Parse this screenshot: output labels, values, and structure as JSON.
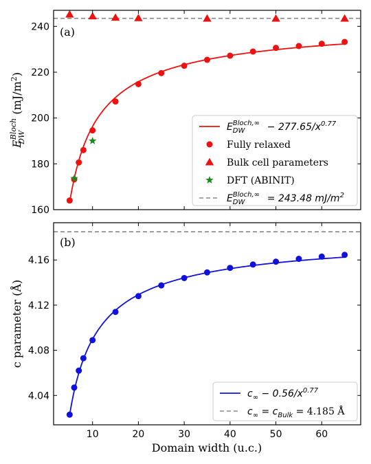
{
  "chart_data": [
    {
      "panel": "(a)",
      "type": "scatter",
      "xlim": [
        1.5,
        68.5
      ],
      "ylim": [
        160,
        247
      ],
      "xticks": [
        10,
        20,
        30,
        40,
        50,
        60
      ],
      "show_xtick_labels": false,
      "yticks": [
        160,
        180,
        200,
        220,
        240
      ],
      "ylabel_main": "E",
      "ylabel_sup": "Bloch",
      "ylabel_sub": "DW",
      "ylabel_unit": " (mJ/m",
      "ylabel_unit_sup": "2",
      "ylabel_close": ")",
      "legend_position": "lower right",
      "fit": {
        "a": 243.48,
        "b": 277.65,
        "p": 0.77,
        "x_start": 5,
        "x_end": 65,
        "color": "#ee1111"
      },
      "hline": {
        "y": 243.48,
        "color": "#888888"
      },
      "series": [
        {
          "kind": "circle",
          "color": "#ee1111",
          "x": [
            5,
            6,
            7,
            8,
            10,
            15,
            20,
            25,
            30,
            35,
            40,
            45,
            50,
            55,
            60,
            65
          ],
          "y": [
            164,
            173.2,
            180.6,
            186,
            194.6,
            207.2,
            214.8,
            219.6,
            222.8,
            225.4,
            227.2,
            229,
            230.6,
            231.4,
            232.4,
            233.2
          ]
        },
        {
          "kind": "triangle",
          "color": "#ee1111",
          "x": [
            5,
            10,
            15,
            20,
            35,
            50,
            65
          ],
          "y": [
            245.2,
            244.4,
            243.8,
            243.6,
            243.4,
            243.4,
            243.4
          ]
        },
        {
          "kind": "star",
          "color": "#1a8a1a",
          "x": [
            6,
            10
          ],
          "y": [
            173.6,
            190
          ]
        }
      ],
      "legend": [
        {
          "kind": "line",
          "color": "#ee1111",
          "main": "E",
          "sub": "DW",
          "sup": "Bloch,∞",
          "rest": " − 277.65/x",
          "rest_sup": "0.77",
          "italic": true
        },
        {
          "kind": "circle",
          "color": "#ee1111",
          "text": "Fully relaxed"
        },
        {
          "kind": "triangle",
          "color": "#ee1111",
          "text": "Bulk cell parameters"
        },
        {
          "kind": "star",
          "color": "#1a8a1a",
          "text": "DFT (ABINIT)"
        },
        {
          "kind": "dash",
          "color": "#888888",
          "main": "E",
          "sub": "DW",
          "sup": "Bloch,∞",
          "rest": " = 243.48 mJ/m",
          "rest_sup": "2",
          "italic": true
        }
      ]
    },
    {
      "panel": "(b)",
      "type": "scatter",
      "xlim": [
        1.5,
        68.5
      ],
      "ylim": [
        4.014,
        4.193
      ],
      "xticks": [
        10,
        20,
        30,
        40,
        50,
        60
      ],
      "show_xtick_labels": true,
      "yticks": [
        4.04,
        4.08,
        4.12,
        4.16
      ],
      "ylabel": "c parameter (Å)",
      "xlabel": "Domain width (u.c.)",
      "legend_position": "lower right",
      "fit": {
        "a": 4.185,
        "b": 0.56,
        "p": 0.77,
        "x_start": 5,
        "x_end": 65,
        "color": "#1111dd"
      },
      "hline": {
        "y": 4.185,
        "color": "#888888"
      },
      "series": [
        {
          "kind": "circle",
          "color": "#1111dd",
          "x": [
            5,
            6,
            7,
            8,
            10,
            15,
            20,
            25,
            30,
            35,
            40,
            45,
            50,
            55,
            60,
            65
          ],
          "y": [
            4.023,
            4.047,
            4.062,
            4.073,
            4.089,
            4.114,
            4.128,
            4.1375,
            4.144,
            4.149,
            4.153,
            4.156,
            4.1585,
            4.161,
            4.163,
            4.1645
          ]
        }
      ],
      "legend": [
        {
          "kind": "line",
          "color": "#1111dd",
          "main": "c",
          "sub": "∞",
          "rest": " − 0.56/x",
          "rest_sup": "0.77",
          "italic": true
        },
        {
          "kind": "dash",
          "color": "#888888",
          "main": "c",
          "sub": "∞",
          "rest": " = c",
          "rest_sub": "Bulk",
          "tail": " = 4.185 Å",
          "italic": true
        }
      ]
    }
  ]
}
